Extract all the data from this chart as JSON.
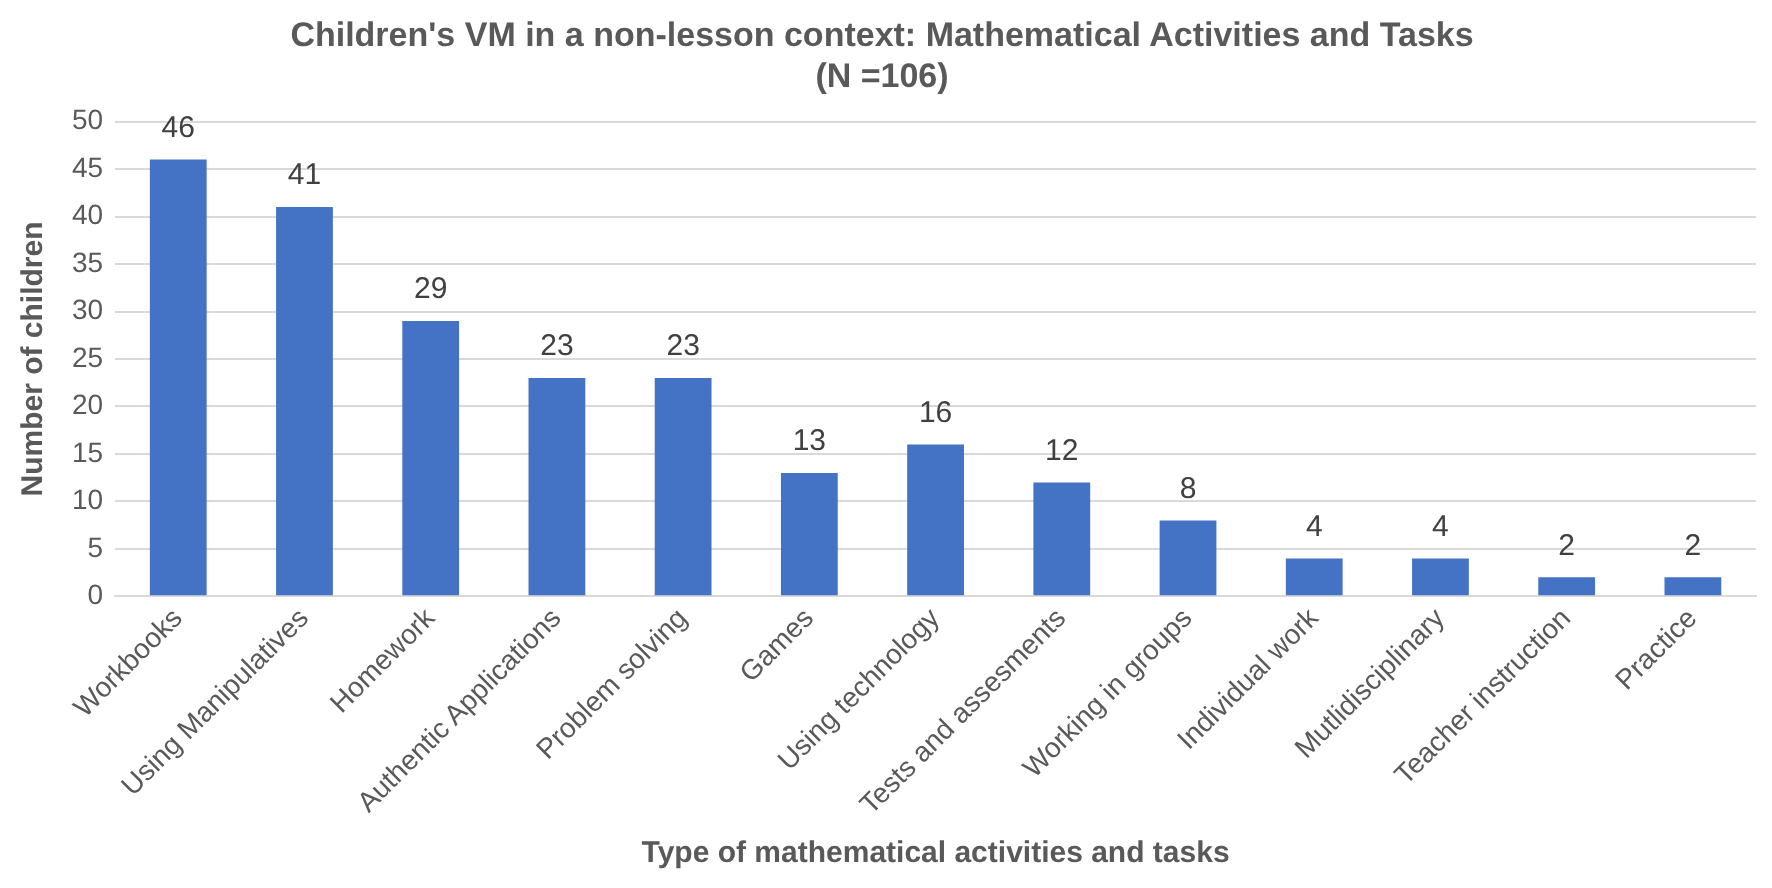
{
  "chart_data": {
    "type": "bar",
    "title": "Children's VM in a non-lesson context: Mathematical Activities and Tasks\n(N =106)",
    "xlabel": "Type of mathematical activities and tasks",
    "ylabel": "Number of children",
    "categories": [
      "Workbooks",
      "Using Manipulatives",
      "Homework",
      "Authentic Applications",
      "Problem solving",
      "Games",
      "Using technology",
      "Tests and assesments",
      "Working in groups",
      "Individual work",
      "Mutlidisciplinary",
      "Teacher instruction",
      "Practice"
    ],
    "values": [
      46,
      41,
      29,
      23,
      23,
      13,
      16,
      12,
      8,
      4,
      4,
      2,
      2
    ],
    "color": "#4472c4",
    "ylim": [
      0,
      50
    ],
    "yticks": [
      0,
      5,
      10,
      15,
      20,
      25,
      30,
      35,
      40,
      45,
      50
    ],
    "grid": "y",
    "data_labels": true
  }
}
